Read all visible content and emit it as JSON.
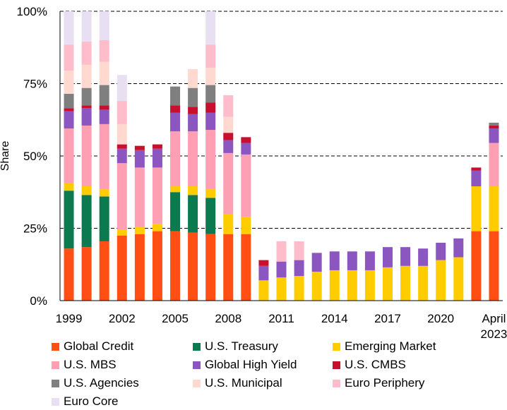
{
  "chart_data": {
    "type": "bar",
    "stacked": true,
    "ylabel": "Share",
    "ylim": [
      0,
      100
    ],
    "yticks": [
      0,
      25,
      50,
      75,
      100
    ],
    "ytick_labels": [
      "0%",
      "25%",
      "50%",
      "75%",
      "100%"
    ],
    "xtick_labels": [
      "1999",
      "2002",
      "2005",
      "2008",
      "2011",
      "2014",
      "2017",
      "2020",
      "April 2023"
    ],
    "categories": [
      "1999",
      "2000",
      "2001",
      "2002",
      "2003",
      "2004",
      "2005",
      "2006",
      "2007",
      "2008",
      "2009",
      "2010",
      "2011",
      "2012",
      "2013",
      "2014",
      "2015",
      "2016",
      "2017",
      "2018",
      "2019",
      "2020",
      "2021",
      "2022",
      "April 2023"
    ],
    "series": [
      {
        "name": "Global Credit",
        "color": "#ff4f14",
        "values": [
          18,
          18.5,
          20.5,
          22.5,
          23,
          24,
          24,
          23.5,
          23,
          23,
          23,
          0,
          0,
          0,
          0,
          0,
          0,
          0,
          0,
          0,
          0,
          0,
          0,
          24,
          24
        ]
      },
      {
        "name": "U.S. Treasury",
        "color": "#0b7a4e",
        "values": [
          20,
          18,
          15.5,
          0,
          0,
          0,
          13.5,
          13,
          12.5,
          0,
          0,
          0,
          0,
          0,
          0,
          0,
          0,
          0,
          0,
          0,
          0,
          0,
          0,
          0,
          0
        ]
      },
      {
        "name": "Emerging Market",
        "color": "#ffcc00",
        "values": [
          2.5,
          3,
          2.5,
          2,
          2.5,
          2.5,
          2,
          3,
          3,
          7,
          6,
          7,
          8,
          8.5,
          10,
          10.5,
          10.5,
          10.5,
          11.5,
          12,
          12,
          14,
          15,
          15.5,
          15.5
        ]
      },
      {
        "name": "U.S. MBS",
        "color": "#ff9fb4",
        "values": [
          19,
          21,
          22.5,
          23,
          20.5,
          19.5,
          19,
          19,
          20.5,
          21,
          21.5,
          0,
          0,
          0,
          0,
          0,
          0,
          0,
          0,
          0,
          0,
          0,
          0,
          0,
          15
        ]
      },
      {
        "name": "Global High Yield",
        "color": "#8c56c1",
        "values": [
          6,
          6,
          5,
          5,
          6,
          6.5,
          6.5,
          6,
          6,
          4.5,
          4,
          5,
          5.5,
          5.5,
          6.5,
          6.5,
          6.5,
          6.5,
          7,
          6.5,
          6,
          6,
          6.5,
          5.5,
          5
        ]
      },
      {
        "name": "U.S. CMBS",
        "color": "#c8102e",
        "values": [
          1,
          1,
          1.5,
          1.5,
          1.5,
          1.5,
          2.5,
          2.5,
          3.5,
          2.5,
          2,
          2,
          0,
          0,
          0,
          0,
          0,
          0,
          0,
          0,
          0,
          0,
          0,
          1,
          1
        ]
      },
      {
        "name": "U.S. Agencies",
        "color": "#7f7f7f",
        "values": [
          5,
          6,
          7,
          0,
          0,
          0,
          6.5,
          6.5,
          6,
          0,
          0,
          0,
          0,
          0,
          0,
          0,
          0,
          0,
          0,
          0,
          0,
          0,
          0,
          0,
          1
        ]
      },
      {
        "name": "U.S. Municipal",
        "color": "#ffd9cf",
        "values": [
          8,
          8,
          8,
          7,
          0,
          0,
          0,
          6.5,
          6,
          5.5,
          0,
          0,
          0,
          0,
          0,
          0,
          0,
          0,
          0,
          0,
          0,
          0,
          0,
          0,
          0
        ]
      },
      {
        "name": "Euro Periphery",
        "color": "#ffbccb",
        "values": [
          9,
          8,
          7.5,
          8,
          0,
          0,
          0,
          0,
          8,
          7.5,
          0,
          0,
          7,
          6.5,
          0,
          0,
          0,
          0,
          0,
          0,
          0,
          0,
          0,
          0,
          0
        ]
      },
      {
        "name": "Euro Core",
        "color": "#e8e0f2",
        "values": [
          11.5,
          10.5,
          10,
          9,
          0,
          0,
          0,
          0,
          11.5,
          0,
          0,
          0,
          0,
          0,
          0,
          0,
          0,
          0,
          0,
          0,
          0,
          0,
          0,
          0,
          0
        ]
      }
    ]
  }
}
